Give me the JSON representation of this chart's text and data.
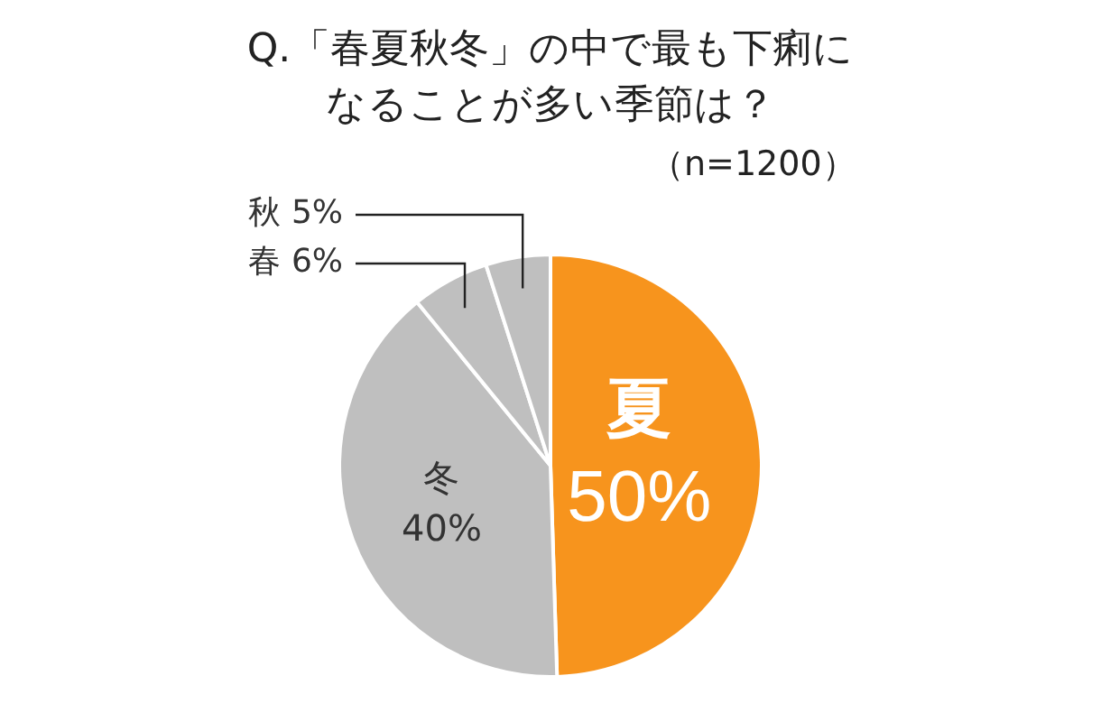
{
  "chart_data": {
    "type": "pie",
    "title": "Q.「春夏秋冬」の中で最も下痢になることが多い季節は？",
    "subtitle": "（n=1200）",
    "categories": [
      "夏",
      "冬",
      "春",
      "秋"
    ],
    "values": [
      50,
      40,
      6,
      5
    ],
    "value_labels": [
      "50%",
      "40%",
      "6%",
      "5%"
    ],
    "colors": [
      "#f7941d",
      "#bfbfbf",
      "#bfbfbf",
      "#bfbfbf"
    ],
    "legend": false
  }
}
